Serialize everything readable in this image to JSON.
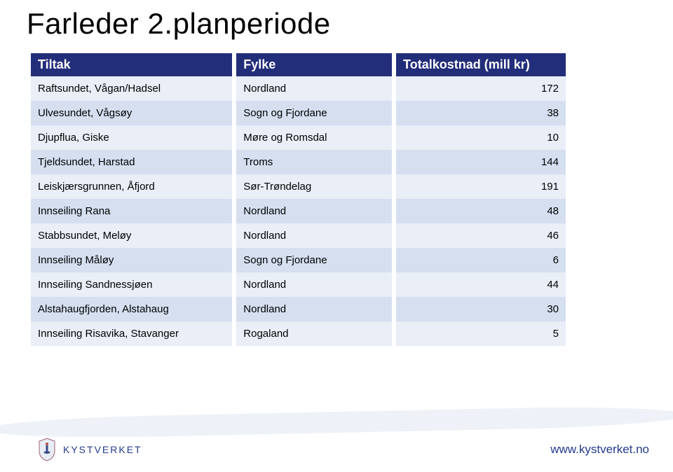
{
  "title": "Farleder 2.planperiode",
  "footer": {
    "url": "www.kystverket.no",
    "org": "KYSTVERKET"
  },
  "table": {
    "header_bg": "#232e7a",
    "header_fg": "#ffffff",
    "row_odd_bg": "#e9eef7",
    "row_even_bg": "#d5dff0",
    "columns": [
      {
        "label": "Tiltak",
        "align": "left"
      },
      {
        "label": "Fylke",
        "align": "left"
      },
      {
        "label": "Totalkostnad (mill kr)",
        "align": "left"
      }
    ],
    "rows": [
      {
        "c1": "Raftsundet, Vågan/Hadsel",
        "c2": "Nordland",
        "c3": "172"
      },
      {
        "c1": "Ulvesundet, Vågsøy",
        "c2": "Sogn og Fjordane",
        "c3": "38"
      },
      {
        "c1": "Djupflua, Giske",
        "c2": "Møre og Romsdal",
        "c3": "10"
      },
      {
        "c1": "Tjeldsundet, Harstad",
        "c2": "Troms",
        "c3": "144"
      },
      {
        "c1": "Leiskjærsgrunnen, Åfjord",
        "c2": "Sør-Trøndelag",
        "c3": "191"
      },
      {
        "c1": "Innseiling Rana",
        "c2": "Nordland",
        "c3": "48"
      },
      {
        "c1": "Stabbsundet, Meløy",
        "c2": "Nordland",
        "c3": "46"
      },
      {
        "c1": "Innseiling Måløy",
        "c2": "Sogn og Fjordane",
        "c3": "6"
      },
      {
        "c1": "Innseiling Sandnessjøen",
        "c2": "Nordland",
        "c3": "44"
      },
      {
        "c1": "Alstahaugfjorden, Alstahaug",
        "c2": "Nordland",
        "c3": "30"
      },
      {
        "c1": "Innseiling Risavika, Stavanger",
        "c2": "Rogaland",
        "c3": "5"
      }
    ]
  }
}
